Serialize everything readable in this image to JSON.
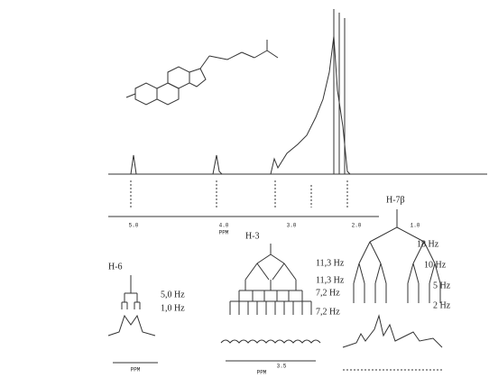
{
  "spectrum": {
    "axis_ticks": [
      "5.0",
      "4.0",
      "3.0",
      "2.0",
      "1.0"
    ],
    "axis_label": "PPM"
  },
  "panels": [
    {
      "title": "H-6",
      "couplings": [
        "5,0 Hz",
        "1,0 Hz"
      ],
      "axis_label": "PPM"
    },
    {
      "title": "H-3",
      "couplings": [
        "11,3 Hz",
        "11,3 Hz",
        "7,2 Hz",
        "7,2 Hz"
      ],
      "axis_tick": "3.5",
      "axis_label": "PPM"
    },
    {
      "title": "H-7β",
      "couplings": [
        "18 Hz",
        "10 Hz",
        "5 Hz",
        "2 Hz"
      ]
    }
  ]
}
